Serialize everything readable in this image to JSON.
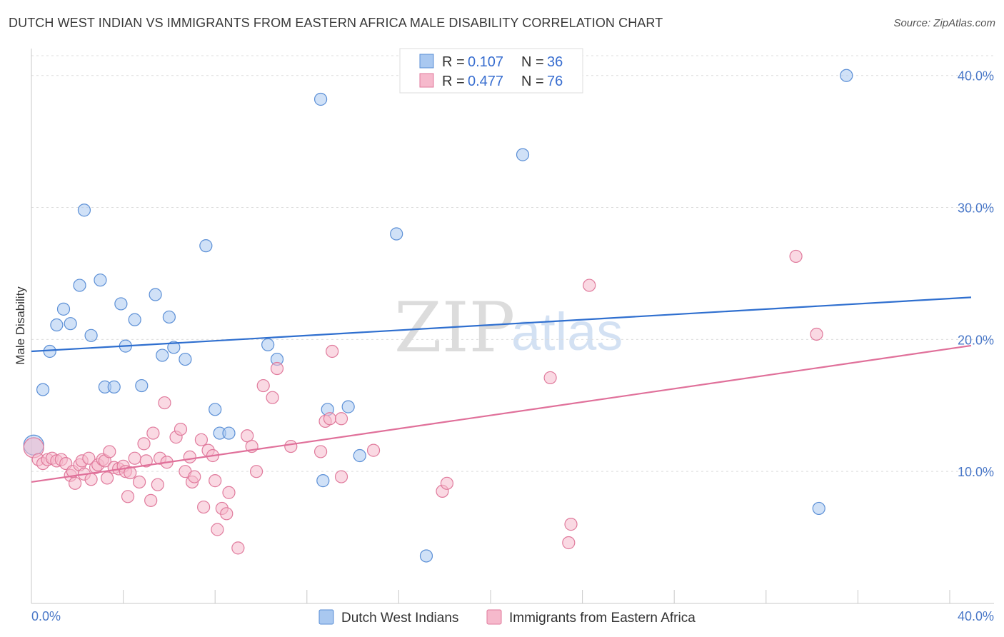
{
  "header": {
    "title": "DUTCH WEST INDIAN VS IMMIGRANTS FROM EASTERN AFRICA MALE DISABILITY CORRELATION CHART",
    "source": "Source: ZipAtlas.com"
  },
  "watermark": {
    "part1": "ZIP",
    "part2": "atlas"
  },
  "legend": {
    "rows": [
      {
        "r_label": "R =",
        "r_value": "0.107",
        "n_label": "N =",
        "n_value": "36",
        "color": "#a9c8f0",
        "stroke": "#5b8fd6"
      },
      {
        "r_label": "R =",
        "r_value": "0.477",
        "n_label": "N =",
        "n_value": "76",
        "color": "#f6b9cc",
        "stroke": "#e07a9c"
      }
    ]
  },
  "bottom_legend": [
    {
      "label": "Dutch West Indians",
      "color": "#a9c8f0",
      "stroke": "#5b8fd6"
    },
    {
      "label": "Immigrants from Eastern Africa",
      "color": "#f6b9cc",
      "stroke": "#e07a9c"
    }
  ],
  "chart_data": {
    "type": "scatter",
    "title": "DUTCH WEST INDIAN VS IMMIGRANTS FROM EASTERN AFRICA MALE DISABILITY CORRELATION CHART",
    "xlabel": "",
    "ylabel": "Male Disability",
    "xlim": [
      0,
      40
    ],
    "ylim": [
      0,
      41.5
    ],
    "x_tick_labels": [
      "0.0%",
      "40.0%"
    ],
    "y_ticks": [
      10,
      20,
      30,
      40
    ],
    "y_tick_labels": [
      "10.0%",
      "20.0%",
      "30.0%",
      "40.0%"
    ],
    "grid": true,
    "legend_position": "top-center",
    "series": [
      {
        "name": "Dutch West Indians",
        "color": "#a9c8f0",
        "stroke": "#5b8fd6",
        "line_color": "#2f6fcf",
        "trend": [
          [
            0,
            19.1
          ],
          [
            40,
            23.1
          ]
        ],
        "points": [
          [
            0.1,
            12.0
          ],
          [
            0.5,
            16.2
          ],
          [
            0.8,
            19.1
          ],
          [
            1.1,
            21.1
          ],
          [
            1.4,
            22.3
          ],
          [
            1.7,
            21.2
          ],
          [
            2.1,
            24.1
          ],
          [
            2.3,
            29.8
          ],
          [
            2.6,
            20.3
          ],
          [
            3.0,
            24.5
          ],
          [
            3.2,
            16.4
          ],
          [
            3.6,
            16.4
          ],
          [
            3.9,
            22.7
          ],
          [
            4.1,
            19.5
          ],
          [
            4.5,
            21.5
          ],
          [
            4.8,
            16.5
          ],
          [
            5.4,
            23.4
          ],
          [
            5.7,
            18.8
          ],
          [
            6.0,
            21.7
          ],
          [
            6.2,
            19.4
          ],
          [
            6.7,
            18.5
          ],
          [
            7.6,
            27.1
          ],
          [
            8.2,
            12.9
          ],
          [
            8.0,
            14.7
          ],
          [
            8.6,
            12.9
          ],
          [
            10.3,
            19.6
          ],
          [
            10.7,
            18.5
          ],
          [
            12.7,
            9.3
          ],
          [
            12.6,
            38.2
          ],
          [
            12.9,
            14.7
          ],
          [
            13.8,
            14.9
          ],
          [
            14.3,
            11.2
          ],
          [
            15.9,
            28.0
          ],
          [
            17.2,
            3.6
          ],
          [
            21.4,
            34.0
          ],
          [
            34.3,
            7.2
          ],
          [
            35.5,
            40.0
          ]
        ]
      },
      {
        "name": "Immigrants from Eastern Africa",
        "color": "#f6b9cc",
        "stroke": "#e07a9c",
        "line_color": "#e0709a",
        "trend": [
          [
            0,
            9.2
          ],
          [
            40,
            19.3
          ]
        ],
        "points": [
          [
            0.1,
            11.8
          ],
          [
            0.3,
            10.9
          ],
          [
            0.5,
            10.6
          ],
          [
            0.7,
            10.9
          ],
          [
            0.9,
            11.0
          ],
          [
            1.1,
            10.8
          ],
          [
            1.3,
            10.9
          ],
          [
            1.5,
            10.6
          ],
          [
            1.7,
            9.7
          ],
          [
            1.8,
            10.0
          ],
          [
            1.9,
            9.1
          ],
          [
            2.1,
            10.5
          ],
          [
            2.2,
            10.8
          ],
          [
            2.3,
            9.8
          ],
          [
            2.5,
            11.0
          ],
          [
            2.6,
            9.4
          ],
          [
            2.8,
            10.3
          ],
          [
            2.9,
            10.5
          ],
          [
            3.1,
            10.9
          ],
          [
            3.2,
            10.8
          ],
          [
            3.3,
            9.5
          ],
          [
            3.4,
            11.5
          ],
          [
            3.6,
            10.3
          ],
          [
            3.8,
            10.2
          ],
          [
            4.0,
            10.4
          ],
          [
            4.1,
            10.0
          ],
          [
            4.2,
            8.1
          ],
          [
            4.3,
            9.9
          ],
          [
            4.5,
            11.0
          ],
          [
            4.7,
            9.2
          ],
          [
            4.9,
            12.1
          ],
          [
            5.0,
            10.8
          ],
          [
            5.2,
            7.8
          ],
          [
            5.3,
            12.9
          ],
          [
            5.5,
            9.0
          ],
          [
            5.6,
            11.0
          ],
          [
            5.8,
            15.2
          ],
          [
            5.9,
            10.7
          ],
          [
            6.3,
            12.6
          ],
          [
            6.5,
            13.2
          ],
          [
            6.7,
            10.0
          ],
          [
            6.9,
            11.1
          ],
          [
            7.0,
            9.2
          ],
          [
            7.1,
            9.6
          ],
          [
            7.4,
            12.4
          ],
          [
            7.5,
            7.3
          ],
          [
            7.7,
            11.6
          ],
          [
            7.9,
            11.2
          ],
          [
            8.0,
            9.3
          ],
          [
            8.1,
            5.6
          ],
          [
            8.3,
            7.2
          ],
          [
            8.5,
            6.8
          ],
          [
            8.6,
            8.4
          ],
          [
            9.0,
            4.2
          ],
          [
            9.4,
            12.7
          ],
          [
            9.6,
            11.9
          ],
          [
            9.8,
            10.0
          ],
          [
            10.1,
            16.5
          ],
          [
            10.5,
            15.6
          ],
          [
            10.7,
            17.8
          ],
          [
            11.3,
            11.9
          ],
          [
            12.6,
            11.5
          ],
          [
            12.8,
            13.8
          ],
          [
            13.0,
            14.0
          ],
          [
            13.1,
            19.1
          ],
          [
            13.5,
            9.6
          ],
          [
            13.5,
            14.0
          ],
          [
            14.9,
            11.6
          ],
          [
            17.9,
            8.5
          ],
          [
            18.1,
            9.1
          ],
          [
            22.6,
            17.1
          ],
          [
            23.5,
            6.0
          ],
          [
            23.4,
            4.6
          ],
          [
            24.3,
            24.1
          ],
          [
            33.3,
            26.3
          ],
          [
            34.2,
            20.4
          ]
        ]
      }
    ]
  }
}
